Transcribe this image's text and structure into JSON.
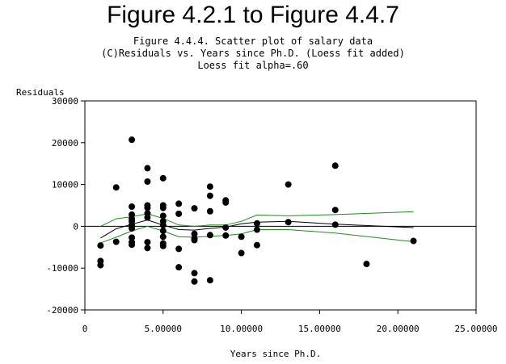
{
  "figure_title": "Figure 4.2.1 to Figure 4.4.7",
  "subtitles": [
    "Figure 4.4.4. Scatter plot of salary data",
    "(C)Residuals vs. Years since Ph.D. (Loess fit added)",
    "Loess fit alpha=.60"
  ],
  "chart_data": {
    "type": "scatter",
    "title": "Figure 4.4.4. Scatter plot of salary data",
    "xlabel": "Years since Ph.D.",
    "ylabel": "Residuals",
    "xlim": [
      0,
      25
    ],
    "ylim": [
      -20000,
      30000
    ],
    "x_ticks": [
      0,
      5,
      10,
      15,
      20,
      25
    ],
    "x_tick_labels": [
      "0",
      "5.00000",
      "10.00000",
      "15.00000",
      "20.00000",
      "25.00000"
    ],
    "y_ticks": [
      -20000,
      -10000,
      0,
      10000,
      20000,
      30000
    ],
    "y_tick_labels": [
      "-20000",
      "-10000",
      "0",
      "10000",
      "20000",
      "30000"
    ],
    "reference_line_y": 0,
    "grid": false,
    "colors": {
      "points": "#000000",
      "loess": "#000000",
      "bands": "#228b22",
      "axis": "#000000"
    },
    "points": [
      [
        1,
        -4600
      ],
      [
        1,
        -8300
      ],
      [
        1,
        -9300
      ],
      [
        2,
        9300
      ],
      [
        2,
        -3700
      ],
      [
        3,
        20700
      ],
      [
        3,
        4700
      ],
      [
        3,
        2800
      ],
      [
        3,
        1800
      ],
      [
        3,
        1200
      ],
      [
        3,
        300
      ],
      [
        3,
        -500
      ],
      [
        3,
        -2700
      ],
      [
        3,
        -3800
      ],
      [
        3,
        -4400
      ],
      [
        4,
        13900
      ],
      [
        4,
        10700
      ],
      [
        4,
        5000
      ],
      [
        4,
        4400
      ],
      [
        4,
        3100
      ],
      [
        4,
        2100
      ],
      [
        4,
        -3800
      ],
      [
        4,
        -5200
      ],
      [
        5,
        11500
      ],
      [
        5,
        5000
      ],
      [
        5,
        4400
      ],
      [
        5,
        2500
      ],
      [
        5,
        1200
      ],
      [
        5,
        300
      ],
      [
        5,
        -1100
      ],
      [
        5,
        -2500
      ],
      [
        5,
        -4100
      ],
      [
        5,
        -4700
      ],
      [
        6,
        5400
      ],
      [
        6,
        3000
      ],
      [
        6,
        -5400
      ],
      [
        6,
        -9800
      ],
      [
        7,
        4300
      ],
      [
        7,
        -1800
      ],
      [
        7,
        -2900
      ],
      [
        7,
        -3300
      ],
      [
        7,
        -11200
      ],
      [
        7,
        -13200
      ],
      [
        8,
        9500
      ],
      [
        8,
        7300
      ],
      [
        8,
        3600
      ],
      [
        8,
        -2100
      ],
      [
        8,
        -12900
      ],
      [
        9,
        6200
      ],
      [
        9,
        5700
      ],
      [
        9,
        -300
      ],
      [
        9,
        -2200
      ],
      [
        10,
        -2500
      ],
      [
        10,
        -6400
      ],
      [
        11,
        700
      ],
      [
        11,
        -800
      ],
      [
        11,
        -4500
      ],
      [
        13,
        10000
      ],
      [
        13,
        1000
      ],
      [
        16,
        14500
      ],
      [
        16,
        3900
      ],
      [
        16,
        400
      ],
      [
        18,
        -9000
      ],
      [
        21,
        -3500
      ]
    ],
    "series": [
      {
        "name": "",
        "style": "line",
        "points": [
          [
            1,
            -2800
          ],
          [
            2,
            -600
          ],
          [
            3,
            500
          ],
          [
            4,
            1500
          ],
          [
            5,
            300
          ],
          [
            6,
            -800
          ],
          [
            7,
            -900
          ],
          [
            8,
            -500
          ],
          [
            9,
            -200
          ],
          [
            10,
            600
          ],
          [
            11,
            1000
          ],
          [
            13,
            1200
          ],
          [
            16,
            500
          ],
          [
            21,
            -300
          ]
        ]
      },
      {
        "name": "",
        "style": "band",
        "points": [
          [
            1,
            0
          ],
          [
            2,
            1800
          ],
          [
            3,
            2300
          ],
          [
            4,
            3000
          ],
          [
            5,
            1900
          ],
          [
            6,
            300
          ],
          [
            7,
            0
          ],
          [
            8,
            300
          ],
          [
            9,
            300
          ],
          [
            10,
            1200
          ],
          [
            11,
            2700
          ],
          [
            13,
            2500
          ],
          [
            16,
            2800
          ],
          [
            21,
            3500
          ]
        ]
      },
      {
        "name": "",
        "style": "band",
        "points": [
          [
            1,
            -4000
          ],
          [
            2,
            -2600
          ],
          [
            3,
            -1100
          ],
          [
            4,
            0
          ],
          [
            5,
            -1100
          ],
          [
            6,
            -2500
          ],
          [
            7,
            -2600
          ],
          [
            8,
            -2400
          ],
          [
            9,
            -2200
          ],
          [
            10,
            -1800
          ],
          [
            11,
            -800
          ],
          [
            13,
            -800
          ],
          [
            16,
            -1600
          ],
          [
            21,
            -3700
          ]
        ]
      }
    ]
  }
}
